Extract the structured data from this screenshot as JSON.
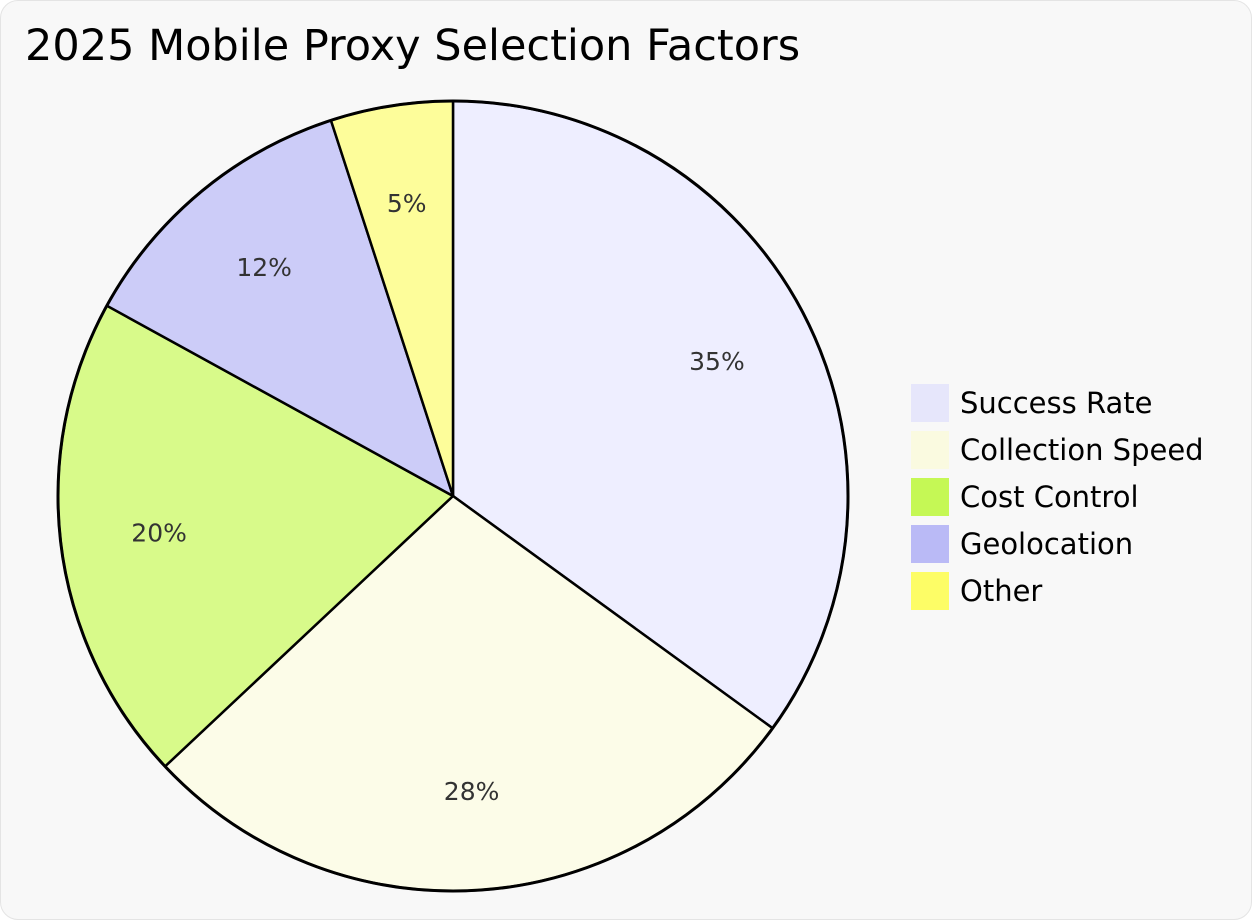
{
  "chart_data": {
    "type": "pie",
    "title": "2025 Mobile Proxy Selection Factors",
    "slices": [
      {
        "label": "Success Rate",
        "value": 35,
        "display": "35%",
        "color": "#eeeeff",
        "legend_color": "#e6e6fb"
      },
      {
        "label": "Collection Speed",
        "value": 28,
        "display": "28%",
        "color": "#fcfce8",
        "legend_color": "#fafae0"
      },
      {
        "label": "Cost Control",
        "value": 20,
        "display": "20%",
        "color": "#d8fa8a",
        "legend_color": "#c5f855"
      },
      {
        "label": "Geolocation",
        "value": 12,
        "display": "12%",
        "color": "#ccccf8",
        "legend_color": "#babaf6"
      },
      {
        "label": "Other",
        "value": 5,
        "display": "5%",
        "color": "#fdfd9a",
        "legend_color": "#fdfd66"
      }
    ],
    "start_angle": "12 o'clock",
    "direction": "clockwise",
    "legend_position": "right"
  }
}
